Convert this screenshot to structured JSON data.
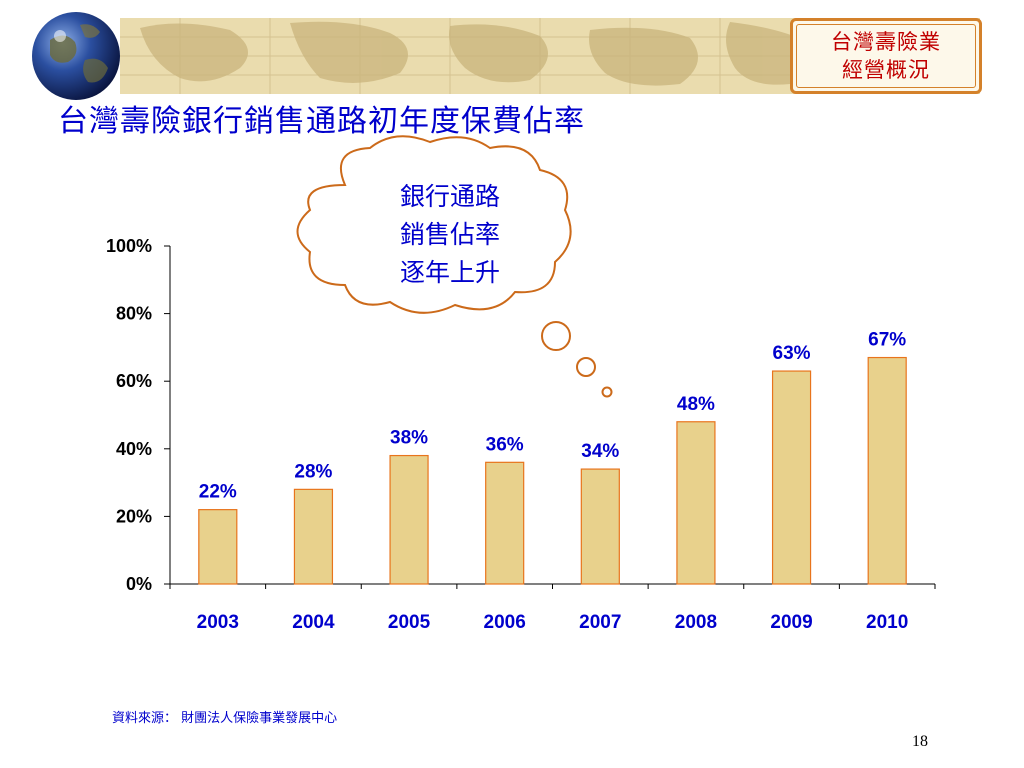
{
  "header": {
    "badge_line1": "台灣壽險業",
    "badge_line2": "經營概況"
  },
  "slide": {
    "title": "台灣壽險銀行銷售通路初年度保費佔率",
    "callout_lines": [
      "銀行通路",
      "銷售佔率",
      "逐年上升"
    ],
    "source": "資料來源： 財團法人保險事業發展中心",
    "page_number": "18"
  },
  "colors": {
    "bar_fill": "#e8d18c",
    "bar_stroke": "#e8741c",
    "callout_stroke": "#cc6a1a",
    "title_color": "#0000cc"
  },
  "chart_data": {
    "type": "bar",
    "categories": [
      "2003",
      "2004",
      "2005",
      "2006",
      "2007",
      "2008",
      "2009",
      "2010"
    ],
    "values": [
      22,
      28,
      38,
      36,
      34,
      48,
      63,
      67
    ],
    "data_labels": [
      "22%",
      "28%",
      "38%",
      "36%",
      "34%",
      "48%",
      "63%",
      "67%"
    ],
    "ylim": [
      0,
      100
    ],
    "yticks": [
      "0%",
      "20%",
      "40%",
      "60%",
      "80%",
      "100%"
    ],
    "title": "",
    "xlabel": "",
    "ylabel": "",
    "grid": false,
    "legend": "none"
  }
}
